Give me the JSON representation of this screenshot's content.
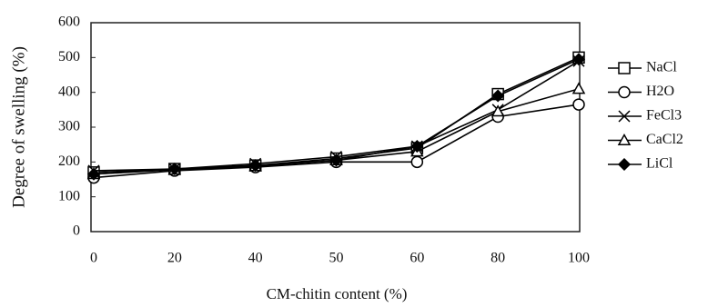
{
  "chart_data": {
    "type": "line",
    "x_label": "CM-chitin content (%)",
    "y_label": "Degree of swelling (%)",
    "categories": [
      "0",
      "20",
      "40",
      "50",
      "60",
      "80",
      "100"
    ],
    "series": [
      {
        "name": "NaCl",
        "color": "#000000",
        "marker": "square",
        "values": [
          170,
          180,
          190,
          210,
          240,
          395,
          500
        ]
      },
      {
        "name": "H2O",
        "color": "#000000",
        "marker": "circle",
        "values": [
          155,
          175,
          185,
          200,
          200,
          330,
          365
        ]
      },
      {
        "name": "FeCl3",
        "color": "#000000",
        "marker": "x",
        "values": [
          175,
          180,
          195,
          215,
          245,
          350,
          490
        ]
      },
      {
        "name": "CaCl2",
        "color": "#000000",
        "marker": "triangle",
        "values": [
          165,
          178,
          188,
          205,
          230,
          345,
          410
        ]
      },
      {
        "name": "LiCl",
        "color": "#000000",
        "marker": "diamond",
        "values": [
          165,
          180,
          190,
          205,
          245,
          390,
          495
        ]
      }
    ],
    "ylim": [
      0,
      600
    ],
    "yticks": [
      0,
      100,
      200,
      300,
      400,
      500,
      600
    ],
    "grid": false,
    "legend": "right"
  }
}
